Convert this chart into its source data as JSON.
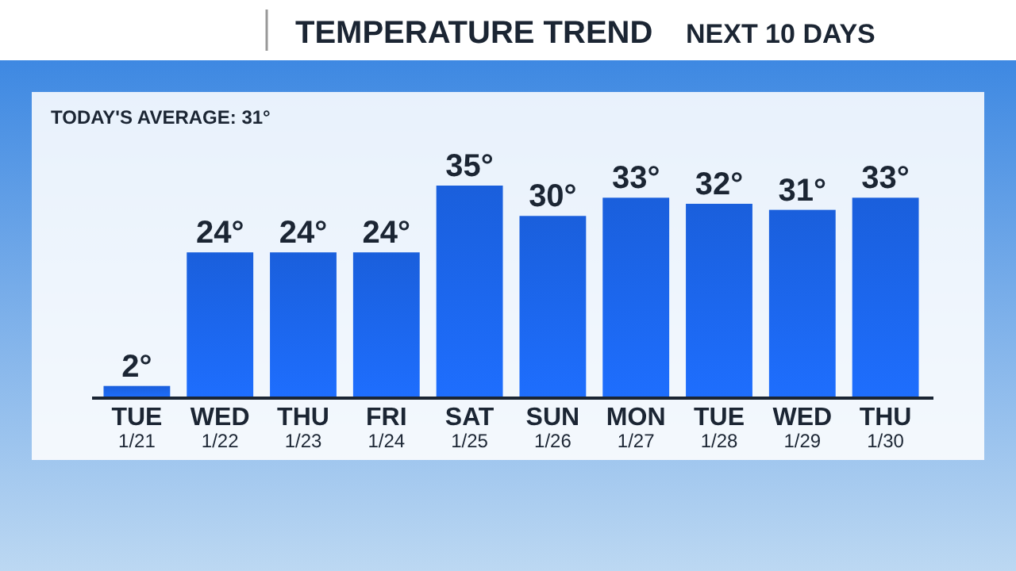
{
  "chart_data": {
    "type": "bar",
    "title": "TEMPERATURE TREND",
    "subtitle": "NEXT 10 DAYS",
    "annotations": [
      "TODAY'S AVERAGE: 31°"
    ],
    "categories": [
      "TUE\n1/21",
      "WED\n1/22",
      "THU\n1/23",
      "FRI\n1/24",
      "SAT\n1/25",
      "SUN\n1/26",
      "MON\n1/27",
      "TUE\n1/28",
      "WED\n1/29",
      "THU\n1/30"
    ],
    "values": [
      2,
      24,
      24,
      24,
      35,
      30,
      33,
      32,
      31,
      33
    ],
    "value_labels": [
      "2°",
      "24°",
      "24°",
      "24°",
      "35°",
      "30°",
      "33°",
      "32°",
      "31°",
      "33°"
    ],
    "color": "#1a5fdc",
    "tick_labels": "x"
  }
}
